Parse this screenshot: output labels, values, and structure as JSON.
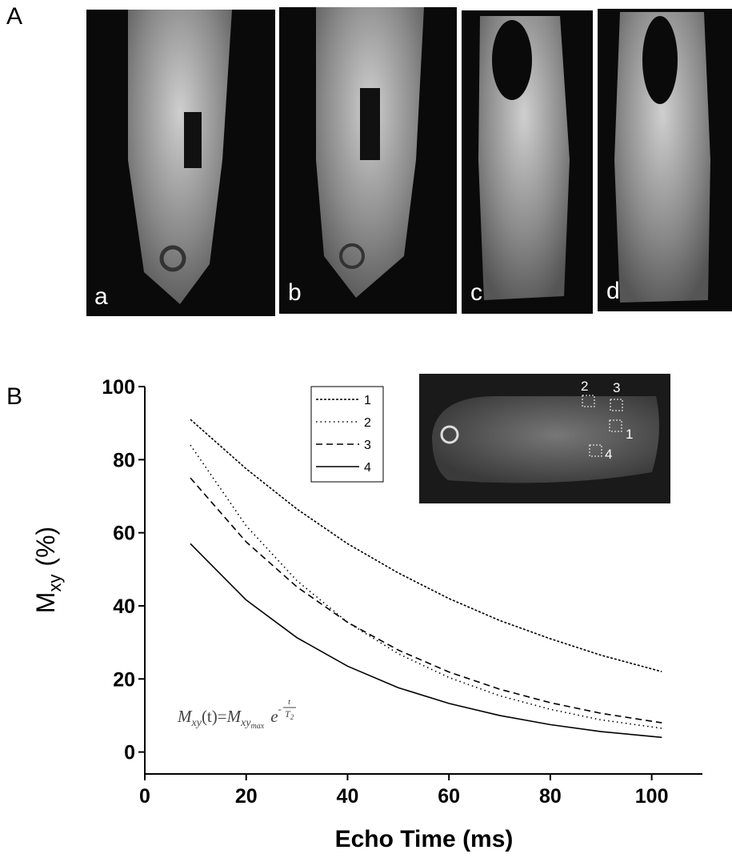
{
  "figure": {
    "panel_a_label": "A",
    "panel_b_label": "B",
    "image_labels": [
      "a",
      "b",
      "c",
      "d"
    ]
  },
  "chart_data": {
    "type": "line",
    "xlabel": "Echo Time (ms)",
    "ylabel": {
      "symbol": "M",
      "subscript": "xy",
      "unit": "(%)"
    },
    "x": [
      9,
      20,
      30,
      40,
      50,
      60,
      70,
      80,
      90,
      102
    ],
    "series": [
      {
        "name": "1",
        "color": "#000000",
        "dash": "3,2",
        "values": [
          91,
          77.5,
          66.5,
          57,
          49,
          42,
          36,
          31,
          26.5,
          22
        ]
      },
      {
        "name": "2",
        "color": "#000000",
        "dash": "1.5,4",
        "values": [
          84,
          61.9,
          46.9,
          35.5,
          26.9,
          20.4,
          15.4,
          11.7,
          8.8,
          6.5
        ]
      },
      {
        "name": "3",
        "color": "#000000",
        "dash": "8,5",
        "values": [
          75,
          57.5,
          45.2,
          35.5,
          27.9,
          21.9,
          17.2,
          13.5,
          10.6,
          8
        ]
      },
      {
        "name": "4",
        "color": "#000000",
        "dash": "none",
        "values": [
          57,
          41.6,
          31.3,
          23.5,
          17.6,
          13.3,
          10,
          7.5,
          5.6,
          4
        ]
      }
    ],
    "xlim": [
      0,
      110
    ],
    "xticks": [
      0,
      20,
      40,
      60,
      80,
      100
    ],
    "ylim": [
      -6,
      100
    ],
    "yticks": [
      0,
      20,
      40,
      60,
      80,
      100
    ],
    "legend": "top-center",
    "formula": {
      "lhs": "M",
      "lhs_sub": "xy",
      "arg": "(t)=",
      "rhs": "M",
      "rhs_sub": "xy",
      "rhs_subsub": "max",
      "base": "e",
      "exp_sign": "-",
      "exp_num": "t",
      "exp_den": "T",
      "exp_den_sub": "2"
    },
    "inset_labels": [
      "1",
      "2",
      "3",
      "4"
    ]
  }
}
